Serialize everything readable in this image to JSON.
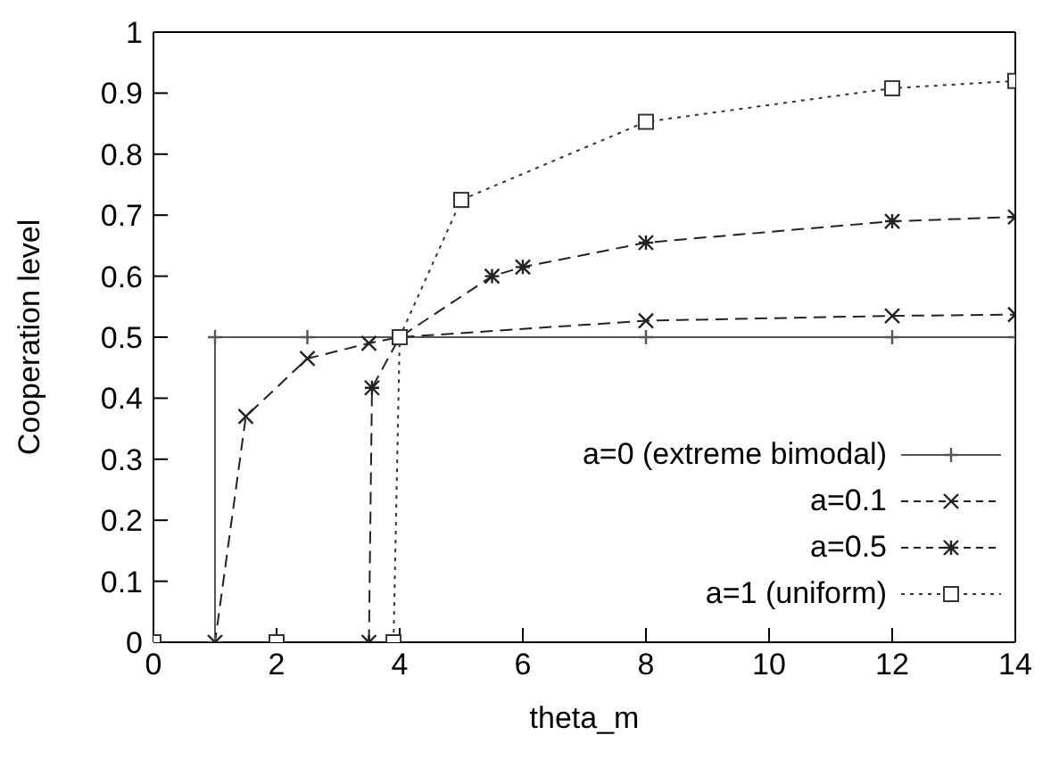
{
  "chart_data": {
    "type": "line",
    "xlabel": "theta_m",
    "ylabel": "Cooperation level",
    "xlim": [
      0,
      14
    ],
    "xticks": [
      0,
      2,
      4,
      6,
      8,
      10,
      12,
      14
    ],
    "ylim": [
      0,
      1
    ],
    "yticks": [
      0,
      0.1,
      0.2,
      0.3,
      0.4,
      0.5,
      0.6,
      0.7,
      0.8,
      0.9,
      1
    ],
    "legend": "bottom right",
    "series": [
      {
        "name": "a=0 (extreme bimodal)",
        "color": "#555555",
        "marker": "cross",
        "line_style": "solid",
        "x": [
          0,
          1,
          1,
          2.5,
          4,
          8,
          12,
          14
        ],
        "values": [
          0,
          0,
          0.5,
          0.5,
          0.5,
          0.5,
          0.5,
          0.5
        ]
      },
      {
        "name": "a=0.1",
        "color": "#222222",
        "marker": "cross",
        "line_style": "dashed",
        "x": [
          0,
          1,
          1.5,
          2.5,
          3.5,
          4,
          8,
          12,
          14
        ],
        "values": [
          0,
          0,
          0.37,
          0.465,
          0.49,
          0.5,
          0.527,
          0.535,
          0.537
        ]
      },
      {
        "name": "a=0.5",
        "color": "#222222",
        "marker": "cross",
        "line_style": "dashed",
        "x": [
          0,
          2,
          3.5,
          3.55,
          4,
          5.5,
          6,
          8,
          12,
          14
        ],
        "values": [
          0,
          0,
          0,
          0.417,
          0.5,
          0.6,
          0.615,
          0.655,
          0.69,
          0.697
        ]
      },
      {
        "name": "a=1 (uniform)",
        "color": "#333333",
        "marker": "square",
        "line_style": "dotted",
        "x": [
          0,
          2,
          3.9,
          4,
          5,
          8,
          12,
          14
        ],
        "values": [
          0,
          0,
          0,
          0.5,
          0.725,
          0.853,
          0.908,
          0.92
        ]
      }
    ]
  }
}
